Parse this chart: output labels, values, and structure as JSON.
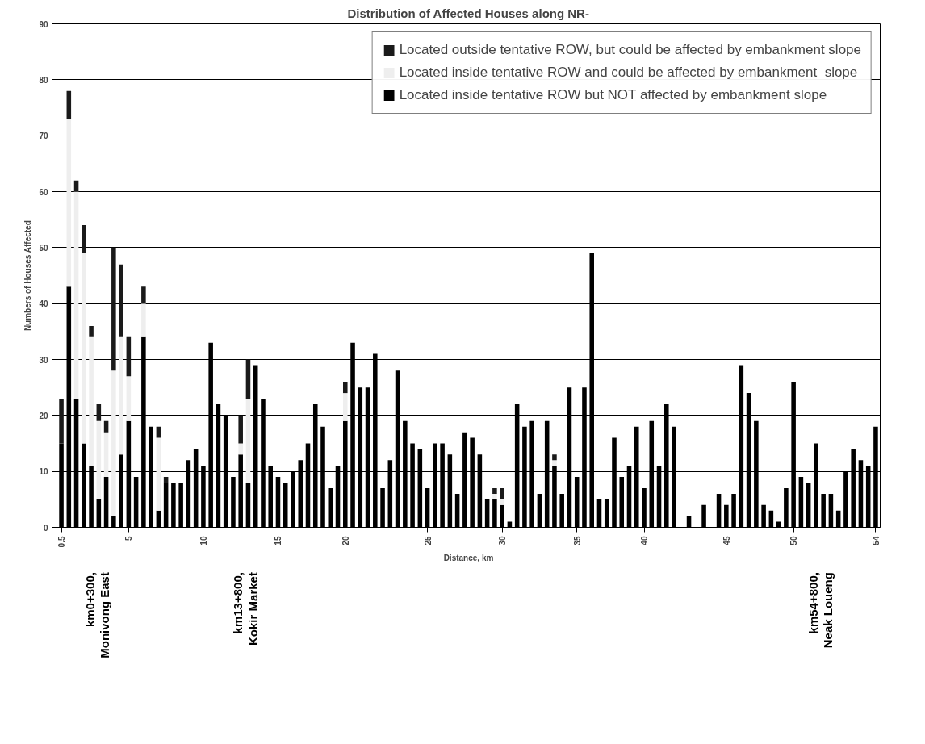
{
  "chart_data": {
    "type": "bar",
    "stacked": true,
    "title": "Distribution of Affected Houses along NR-",
    "xlabel": "Distance, km",
    "ylabel": "Numbers of Houses Affected",
    "categories": [
      "0.5",
      null,
      null,
      null,
      null,
      null,
      null,
      null,
      null,
      "5",
      null,
      null,
      null,
      null,
      null,
      null,
      null,
      null,
      null,
      "10",
      null,
      null,
      null,
      null,
      null,
      null,
      null,
      null,
      null,
      "15",
      null,
      null,
      null,
      null,
      null,
      null,
      null,
      null,
      "20",
      null,
      null,
      null,
      null,
      null,
      null,
      null,
      null,
      null,
      null,
      "25",
      null,
      null,
      null,
      null,
      null,
      null,
      null,
      null,
      null,
      "30",
      null,
      null,
      null,
      null,
      null,
      null,
      null,
      null,
      null,
      "35",
      null,
      null,
      null,
      null,
      null,
      null,
      null,
      null,
      "40",
      null,
      null,
      null,
      null,
      null,
      null,
      null,
      null,
      null,
      null,
      "45",
      null,
      null,
      null,
      null,
      null,
      null,
      null,
      null,
      "50",
      null,
      null,
      null,
      null,
      null,
      null,
      null,
      null,
      null,
      null,
      "54"
    ],
    "series": [
      {
        "name": "Located inside tentative ROW but NOT affected by embankment slope",
        "color": "#000000",
        "values": [
          15,
          43,
          23,
          15,
          11,
          5,
          9,
          2,
          13,
          19,
          9,
          34,
          18,
          3,
          8,
          8,
          8,
          12,
          14,
          11,
          33,
          22,
          20,
          9,
          13,
          8,
          29,
          23,
          11,
          9,
          8,
          10,
          12,
          15,
          22,
          18,
          7,
          11,
          19,
          33,
          25,
          25,
          31,
          7,
          12,
          28,
          19,
          15,
          14,
          7,
          15,
          15,
          13,
          6,
          17,
          16,
          13,
          5,
          5,
          4,
          1,
          22,
          18,
          19,
          6,
          19,
          11,
          6,
          25,
          9,
          25,
          49,
          5,
          5,
          16,
          9,
          11,
          18,
          7,
          19,
          11,
          22,
          18,
          0,
          2,
          0,
          4,
          0,
          6,
          4,
          6,
          29,
          24,
          19,
          4,
          3,
          1,
          7,
          26,
          9,
          8,
          15,
          6,
          6,
          3,
          10,
          14,
          12,
          11,
          18
        ]
      },
      {
        "name": "Located inside tentative ROW and could be affected by embankment  slope",
        "color": "#eeeeee",
        "values": [
          0,
          30,
          37,
          34,
          23,
          14,
          8,
          26,
          21,
          8,
          0,
          6,
          0,
          13,
          0,
          0,
          0,
          0,
          0,
          0,
          0,
          0,
          0,
          0,
          2,
          15,
          0,
          0,
          0,
          0,
          0,
          0,
          0,
          0,
          0,
          0,
          0,
          0,
          5,
          0,
          0,
          0,
          0,
          0,
          0,
          0,
          0,
          0,
          0,
          0,
          0,
          0,
          0,
          0,
          0,
          0,
          0,
          0,
          1,
          1,
          0,
          0,
          0,
          0,
          0,
          0,
          1,
          0,
          0,
          0,
          0,
          0,
          0,
          0,
          0,
          0,
          0,
          0,
          0,
          0,
          0,
          0,
          0,
          0,
          0,
          0,
          0,
          0,
          0,
          0,
          0,
          0,
          0,
          0,
          0,
          0,
          0,
          0,
          0,
          0,
          0,
          0,
          0,
          0,
          0,
          0,
          0,
          0,
          0,
          0
        ]
      },
      {
        "name": "Located outside tentative ROW, but could be affected by embankment slope",
        "color": "#1a1a1a",
        "values": [
          8,
          5,
          2,
          5,
          2,
          3,
          2,
          22,
          13,
          7,
          0,
          3,
          0,
          2,
          1,
          0,
          0,
          0,
          0,
          0,
          0,
          0,
          0,
          0,
          5,
          7,
          0,
          0,
          0,
          0,
          0,
          0,
          0,
          0,
          0,
          0,
          0,
          0,
          2,
          0,
          0,
          0,
          0,
          0,
          0,
          0,
          0,
          0,
          0,
          0,
          0,
          0,
          0,
          0,
          0,
          0,
          0,
          0,
          1,
          2,
          0,
          0,
          0,
          0,
          0,
          0,
          1,
          0,
          0,
          0,
          0,
          0,
          0,
          0,
          0,
          0,
          0,
          0,
          0,
          0,
          0,
          0,
          0,
          0,
          0,
          0,
          0,
          0,
          0,
          0,
          0,
          0,
          0,
          0,
          0,
          0,
          0,
          0,
          0,
          0,
          0,
          0,
          0,
          0,
          0,
          0,
          0,
          0,
          0,
          0
        ]
      }
    ],
    "ylim": [
      0,
      90
    ],
    "yticks": [
      0,
      10,
      20,
      30,
      40,
      50,
      60,
      70,
      80,
      90
    ],
    "grid": "y",
    "legend": "top right",
    "annotations": [
      "km0+300,\nMonivong East",
      "km13+800,\nKokir Market",
      "km54+800,\nNeak Loueng"
    ]
  }
}
